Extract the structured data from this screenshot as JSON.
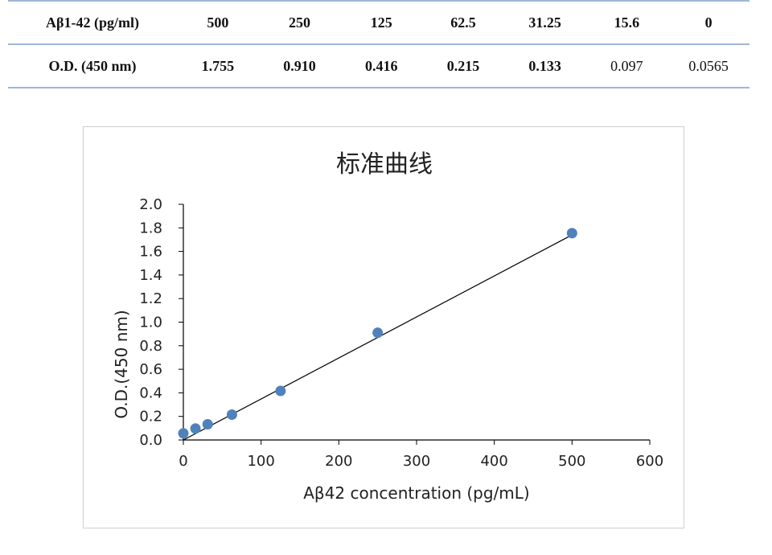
{
  "table": {
    "row1": {
      "label": "Aβ1-42 (pg/ml)",
      "values": [
        "500",
        "250",
        "125",
        "62.5",
        "31.25",
        "15.6",
        "0"
      ]
    },
    "row2": {
      "label": "O.D. (450 nm)",
      "values": [
        "1.755",
        "0.910",
        "0.416",
        "0.215",
        "0.133",
        "0.097",
        "0.0565"
      ]
    }
  },
  "chart_data": {
    "type": "scatter",
    "title": "标准曲线",
    "xlabel": "Aβ42 concentration (pg/mL)",
    "ylabel": "O.D.(450 nm)",
    "xlim": [
      0,
      600
    ],
    "ylim": [
      0,
      2.0
    ],
    "x_ticks": [
      "0",
      "100",
      "200",
      "300",
      "400",
      "500",
      "600"
    ],
    "y_ticks": [
      "0.0",
      "0.2",
      "0.4",
      "0.6",
      "0.8",
      "1.0",
      "1.2",
      "1.4",
      "1.6",
      "1.8",
      "2.0"
    ],
    "grid": false,
    "legend": "none",
    "series": [
      {
        "x": [
          0,
          15.6,
          31.25,
          62.5,
          125,
          250,
          500
        ],
        "y": [
          0.0565,
          0.097,
          0.133,
          0.215,
          0.416,
          0.91,
          1.755
        ]
      }
    ],
    "trendline": {
      "x": [
        0,
        500
      ],
      "y": [
        0.0,
        1.74
      ]
    },
    "colors": {
      "marker": "#4f81bd",
      "line": "#000000",
      "axis": "#000000"
    }
  }
}
